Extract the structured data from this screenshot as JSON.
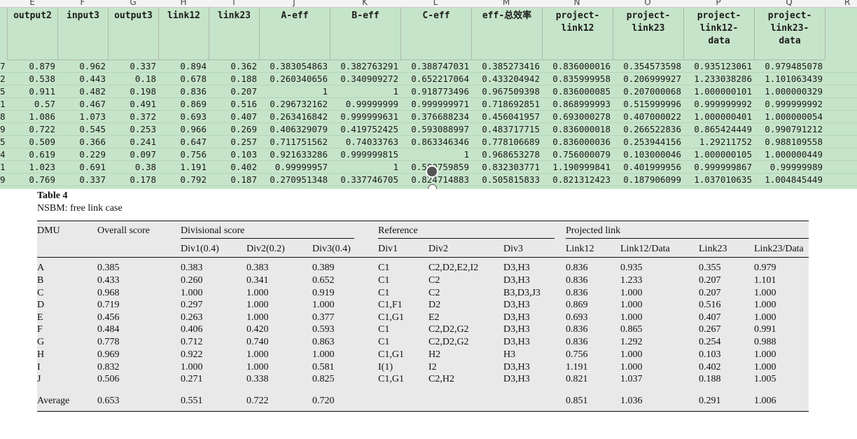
{
  "sheet": {
    "column_letters": [
      "E",
      "F",
      "G",
      "H",
      "I",
      "J",
      "K",
      "L",
      "M",
      "N",
      "O",
      "P",
      "Q",
      "R"
    ],
    "headers": [
      "output2",
      "input3",
      "output3",
      "link12",
      "link23",
      "A-eff",
      "B-eff",
      "C-eff",
      "eff-总效率",
      "project-\nlink12",
      "project-\nlink23",
      "project-\nlink12-\ndata",
      "project-\nlink23-\ndata"
    ],
    "row_number_suffixes": [
      "7",
      "2",
      "5",
      "1",
      "8",
      "9",
      "5",
      "4",
      "1",
      "9"
    ],
    "rows": [
      [
        "0.879",
        "0.962",
        "0.337",
        "0.894",
        "0.362",
        "0.383054863",
        "0.382763291",
        "0.388747031",
        "0.385273416",
        "0.836000016",
        "0.354573598",
        "0.935123061",
        "0.979485078"
      ],
      [
        "0.538",
        "0.443",
        "0.18",
        "0.678",
        "0.188",
        "0.260340656",
        "0.340909272",
        "0.652217064",
        "0.433204942",
        "0.835999958",
        "0.206999927",
        "1.233038286",
        "1.101063439"
      ],
      [
        "0.911",
        "0.482",
        "0.198",
        "0.836",
        "0.207",
        "1",
        "1",
        "0.918773496",
        "0.967509398",
        "0.836000085",
        "0.207000068",
        "1.000000101",
        "1.000000329"
      ],
      [
        "0.57",
        "0.467",
        "0.491",
        "0.869",
        "0.516",
        "0.296732162",
        "0.99999999",
        "0.999999971",
        "0.718692851",
        "0.868999993",
        "0.515999996",
        "0.999999992",
        "0.999999992"
      ],
      [
        "1.086",
        "1.073",
        "0.372",
        "0.693",
        "0.407",
        "0.263416842",
        "0.999999631",
        "0.376688234",
        "0.456041957",
        "0.693000278",
        "0.407000022",
        "1.000000401",
        "1.000000054"
      ],
      [
        "0.722",
        "0.545",
        "0.253",
        "0.966",
        "0.269",
        "0.406329079",
        "0.419752425",
        "0.593088997",
        "0.483717715",
        "0.836000018",
        "0.266522836",
        "0.865424449",
        "0.990791212"
      ],
      [
        "0.509",
        "0.366",
        "0.241",
        "0.647",
        "0.257",
        "0.711751562",
        "0.74033763",
        "0.863346346",
        "0.778106689",
        "0.836000036",
        "0.253944156",
        "1.29211752",
        "0.988109558"
      ],
      [
        "0.619",
        "0.229",
        "0.097",
        "0.756",
        "0.103",
        "0.921633286",
        "0.999999815",
        "1",
        "0.968653278",
        "0.756000079",
        "0.103000046",
        "1.000000105",
        "1.000000449"
      ],
      [
        "1.023",
        "0.691",
        "0.38",
        "1.191",
        "0.402",
        "0.99999957",
        "1",
        "0.580759859",
        "0.832303771",
        "1.190999841",
        "0.401999956",
        "0.999999867",
        "0.99999989"
      ],
      [
        "0.769",
        "0.337",
        "0.178",
        "0.792",
        "0.187",
        "0.270951348",
        "0.337746705",
        "0.824714883",
        "0.505815833",
        "0.821312423",
        "0.187906099",
        "1.037010635",
        "1.004845449"
      ]
    ]
  },
  "table4": {
    "label": "Table 4",
    "caption": "NSBM: free link case",
    "group_headers": {
      "dmu": "DMU",
      "overall": "Overall score",
      "divisional": "Divisional score",
      "reference": "Reference",
      "projected": "Projected link"
    },
    "sub_headers": [
      "Div1(0.4)",
      "Div2(0.2)",
      "Div3(0.4)",
      "Div1",
      "Div2",
      "Div3",
      "Link12",
      "Link12/Data",
      "Link23",
      "Link23/Data"
    ],
    "rows": [
      [
        "A",
        "0.385",
        "0.383",
        "0.383",
        "0.389",
        "C1",
        "C2,D2,E2,I2",
        "D3,H3",
        "0.836",
        "0.935",
        "0.355",
        "0.979"
      ],
      [
        "B",
        "0.433",
        "0.260",
        "0.341",
        "0.652",
        "C1",
        "C2",
        "D3,H3",
        "0.836",
        "1.233",
        "0.207",
        "1.101"
      ],
      [
        "C",
        "0.968",
        "1.000",
        "1.000",
        "0.919",
        "C1",
        "C2",
        "B3,D3,J3",
        "0.836",
        "1.000",
        "0.207",
        "1.000"
      ],
      [
        "D",
        "0.719",
        "0.297",
        "1.000",
        "1.000",
        "C1,F1",
        "D2",
        "D3,H3",
        "0.869",
        "1.000",
        "0.516",
        "1.000"
      ],
      [
        "E",
        "0.456",
        "0.263",
        "1.000",
        "0.377",
        "C1,G1",
        "E2",
        "D3,H3",
        "0.693",
        "1.000",
        "0.407",
        "1.000"
      ],
      [
        "F",
        "0.484",
        "0.406",
        "0.420",
        "0.593",
        "C1",
        "C2,D2,G2",
        "D3,H3",
        "0.836",
        "0.865",
        "0.267",
        "0.991"
      ],
      [
        "G",
        "0.778",
        "0.712",
        "0.740",
        "0.863",
        "C1",
        "C2,D2,G2",
        "D3,H3",
        "0.836",
        "1.292",
        "0.254",
        "0.988"
      ],
      [
        "H",
        "0.969",
        "0.922",
        "1.000",
        "1.000",
        "C1,G1",
        "H2",
        "H3",
        "0.756",
        "1.000",
        "0.103",
        "1.000"
      ],
      [
        "I",
        "0.832",
        "1.000",
        "1.000",
        "0.581",
        "I(1)",
        "I2",
        "D3,H3",
        "1.191",
        "1.000",
        "0.402",
        "1.000"
      ],
      [
        "J",
        "0.506",
        "0.271",
        "0.338",
        "0.825",
        "C1,G1",
        "C2,H2",
        "D3,H3",
        "0.821",
        "1.037",
        "0.188",
        "1.005"
      ]
    ],
    "average": [
      "Average",
      "0.653",
      "0.551",
      "0.722",
      "0.720",
      "",
      "",
      "",
      "0.851",
      "1.036",
      "0.291",
      "1.006"
    ]
  }
}
